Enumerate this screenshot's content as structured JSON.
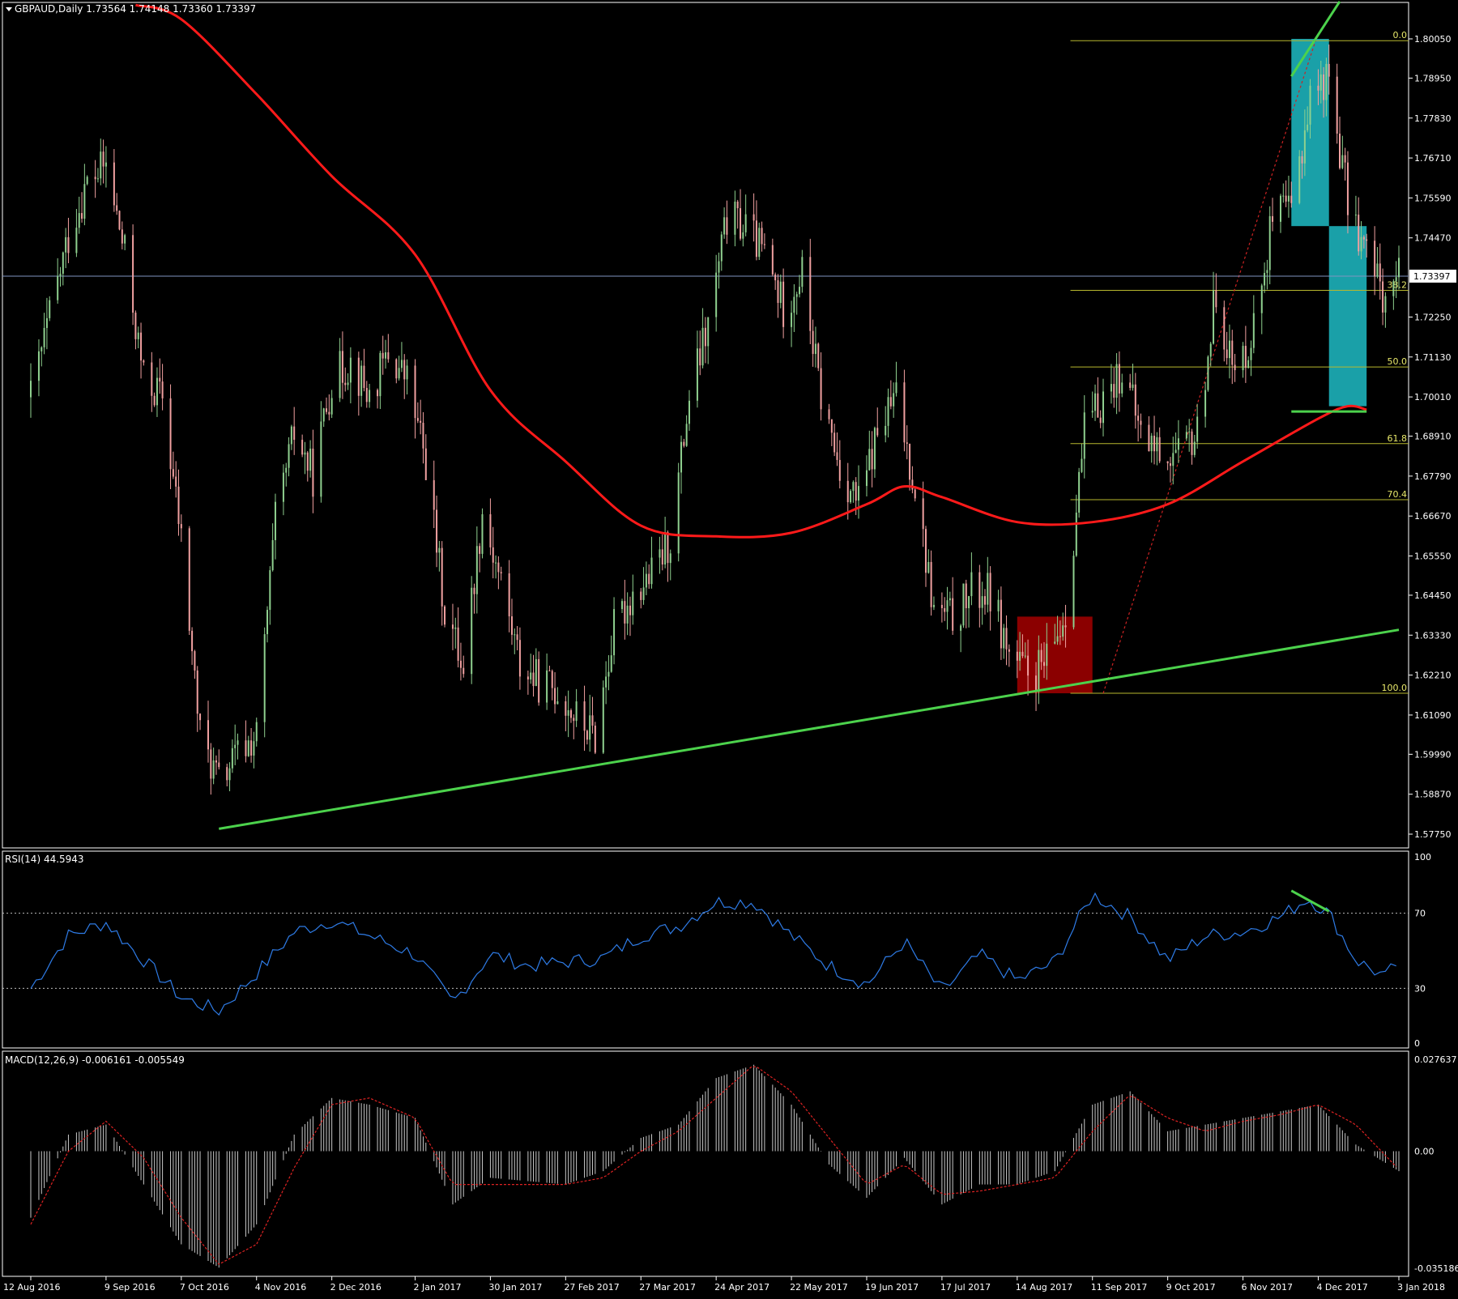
{
  "colors": {
    "background": "#000000",
    "frame": "#ffffff",
    "text": "#ffffff",
    "bull_candle": "#8fd08f",
    "bear_candle": "#f0a0a0",
    "ma_line": "#ff1a1a",
    "trendline": "#4cd24c",
    "fib": "#b8b82e",
    "fib_diag": "#cc2222",
    "price_line": "#7f93c0",
    "rsi_line": "#2e7be6",
    "macd_hist": "#c8c8c8",
    "macd_signal": "#dd2222",
    "cyan_box": "#1aa0a8",
    "red_box": "#8b0000"
  },
  "main": {
    "header": "GBPAUD,Daily  1.73564 1.74148 1.73360 1.73397",
    "current_price_label": "1.73397"
  },
  "rsi": {
    "header": "RSI(14) 44.5943",
    "levels_labels": [
      "100",
      "70",
      "30",
      "0"
    ]
  },
  "macd": {
    "header": "MACD(12,26,9) -0.006161 -0.005549",
    "axis_labels": [
      "0.027637",
      "0.00",
      "-0.035186"
    ]
  },
  "date_labels": [
    "12 Aug 2016",
    "9 Sep 2016",
    "7 Oct 2016",
    "4 Nov 2016",
    "2 Dec 2016",
    "2 Jan 2017",
    "30 Jan 2017",
    "27 Feb 2017",
    "27 Mar 2017",
    "24 Apr 2017",
    "22 May 2017",
    "19 Jun 2017",
    "17 Jul 2017",
    "14 Aug 2017",
    "11 Sep 2017",
    "9 Oct 2017",
    "6 Nov 2017",
    "4 Dec 2017",
    "3 Jan 2018"
  ],
  "fib_labels": [
    "0.0",
    "38.2",
    "50.0",
    "61.8",
    "70.4",
    "100.0"
  ],
  "chart_data": [
    {
      "type": "candlestick",
      "title": "GBPAUD,Daily",
      "symbol": "GBPAUD",
      "timeframe": "Daily",
      "ohlc_last": [
        1.73564,
        1.74148,
        1.7336,
        1.73397
      ],
      "y_ticks": [
        1.8005,
        1.7895,
        1.7783,
        1.7671,
        1.7559,
        1.7447,
        1.73397,
        1.7225,
        1.7113,
        1.7001,
        1.6891,
        1.6779,
        1.6667,
        1.6555,
        1.6445,
        1.6333,
        1.6221,
        1.6109,
        1.5999,
        1.5887,
        1.5775
      ],
      "ylim": [
        1.573,
        1.808
      ],
      "x_labels": [
        "12 Aug 2016",
        "9 Sep 2016",
        "7 Oct 2016",
        "4 Nov 2016",
        "2 Dec 2016",
        "2 Jan 2017",
        "30 Jan 2017",
        "27 Feb 2017",
        "27 Mar 2017",
        "24 Apr 2017",
        "22 May 2017",
        "19 Jun 2017",
        "17 Jul 2017",
        "14 Aug 2017",
        "11 Sep 2017",
        "9 Oct 2017",
        "6 Nov 2017",
        "4 Dec 2017",
        "3 Jan 2018"
      ],
      "close_path": [
        [
          "12 Aug 2016",
          1.7
        ],
        [
          "26 Aug 2016",
          1.745
        ],
        [
          "2 Sep 2016",
          1.76
        ],
        [
          "9 Sep 2016",
          1.765
        ],
        [
          "16 Sep 2016",
          1.74
        ],
        [
          "23 Sep 2016",
          1.705
        ],
        [
          "30 Sep 2016",
          1.7
        ],
        [
          "7 Oct 2016",
          1.66
        ],
        [
          "14 Oct 2016",
          1.605
        ],
        [
          "21 Oct 2016",
          1.592
        ],
        [
          "28 Oct 2016",
          1.6
        ],
        [
          "4 Nov 2016",
          1.605
        ],
        [
          "11 Nov 2016",
          1.665
        ],
        [
          "18 Nov 2016",
          1.69
        ],
        [
          "25 Nov 2016",
          1.678
        ],
        [
          "2 Dec 2016",
          1.705
        ],
        [
          "9 Dec 2016",
          1.71
        ],
        [
          "16 Dec 2016",
          1.7
        ],
        [
          "23 Dec 2016",
          1.712
        ],
        [
          "30 Dec 2016",
          1.705
        ],
        [
          "6 Jan 2017",
          1.682
        ],
        [
          "13 Jan 2017",
          1.64
        ],
        [
          "20 Jan 2017",
          1.625
        ],
        [
          "27 Jan 2017",
          1.668
        ],
        [
          "3 Feb 2017",
          1.648
        ],
        [
          "10 Feb 2017",
          1.625
        ],
        [
          "17 Feb 2017",
          1.62
        ],
        [
          "24 Feb 2017",
          1.618
        ],
        [
          "3 Mar 2017",
          1.61
        ],
        [
          "10 Mar 2017",
          1.605
        ],
        [
          "17 Mar 2017",
          1.635
        ],
        [
          "24 Mar 2017",
          1.645
        ],
        [
          "31 Mar 2017",
          1.65
        ],
        [
          "7 Apr 2017",
          1.66
        ],
        [
          "14 Apr 2017",
          1.7
        ],
        [
          "21 Apr 2017",
          1.72
        ],
        [
          "28 Apr 2017",
          1.75
        ],
        [
          "5 May 2017",
          1.748
        ],
        [
          "12 May 2017",
          1.74
        ],
        [
          "19 May 2017",
          1.725
        ],
        [
          "26 May 2017",
          1.735
        ],
        [
          "2 Jun 2017",
          1.7
        ],
        [
          "9 Jun 2017",
          1.68
        ],
        [
          "16 Jun 2017",
          1.67
        ],
        [
          "23 Jun 2017",
          1.69
        ],
        [
          "30 Jun 2017",
          1.7
        ],
        [
          "7 Jul 2017",
          1.675
        ],
        [
          "14 Jul 2017",
          1.64
        ],
        [
          "21 Jul 2017",
          1.638
        ],
        [
          "28 Jul 2017",
          1.645
        ],
        [
          "4 Aug 2017",
          1.645
        ],
        [
          "11 Aug 2017",
          1.628
        ],
        [
          "18 Aug 2017",
          1.622
        ],
        [
          "25 Aug 2017",
          1.625
        ],
        [
          "1 Sep 2017",
          1.64
        ],
        [
          "8 Sep 2017",
          1.69
        ],
        [
          "15 Sep 2017",
          1.7
        ],
        [
          "22 Sep 2017",
          1.708
        ],
        [
          "29 Sep 2017",
          1.69
        ],
        [
          "6 Oct 2017",
          1.685
        ],
        [
          "13 Oct 2017",
          1.683
        ],
        [
          "20 Oct 2017",
          1.69
        ],
        [
          "27 Oct 2017",
          1.73
        ],
        [
          "3 Nov 2017",
          1.705
        ],
        [
          "10 Nov 2017",
          1.72
        ],
        [
          "17 Nov 2017",
          1.75
        ],
        [
          "24 Nov 2017",
          1.752
        ],
        [
          "1 Dec 2017",
          1.785
        ],
        [
          "8 Dec 2017",
          1.79
        ],
        [
          "15 Dec 2017",
          1.755
        ],
        [
          "22 Dec 2017",
          1.74
        ],
        [
          "29 Dec 2017",
          1.728
        ],
        [
          "3 Jan 2018",
          1.734
        ]
      ],
      "moving_average": [
        [
          "20 Sep 2016",
          1.81
        ],
        [
          "7 Oct 2016",
          1.806
        ],
        [
          "4 Nov 2016",
          1.785
        ],
        [
          "2 Dec 2016",
          1.762
        ],
        [
          "2 Jan 2017",
          1.74
        ],
        [
          "30 Jan 2017",
          1.702
        ],
        [
          "27 Feb 2017",
          1.682
        ],
        [
          "27 Mar 2017",
          1.664
        ],
        [
          "24 Apr 2017",
          1.661
        ],
        [
          "22 May 2017",
          1.662
        ],
        [
          "19 Jun 2017",
          1.67
        ],
        [
          "3 Jul 2017",
          1.675
        ],
        [
          "17 Jul 2017",
          1.672
        ],
        [
          "14 Aug 2017",
          1.665
        ],
        [
          "11 Sep 2017",
          1.665
        ],
        [
          "9 Oct 2017",
          1.67
        ],
        [
          "6 Nov 2017",
          1.682
        ],
        [
          "4 Dec 2017",
          1.694
        ],
        [
          "15 Dec 2017",
          1.6975
        ],
        [
          "22 Dec 2017",
          1.6965
        ]
      ],
      "trendlines": [
        {
          "from": [
            "21 Oct 2016",
            1.579
          ],
          "to": [
            "3 Jan 2018",
            1.6348
          ]
        },
        {
          "from": [
            "24 Nov 2017",
            1.79
          ],
          "to": [
            "12 Dec 2017",
            1.811
          ]
        },
        {
          "from": [
            "24 Nov 2017",
            1.696
          ],
          "to": [
            "22 Dec 2017",
            1.696
          ]
        }
      ],
      "fibonacci": {
        "from": [
          "15 Sep 2017",
          1.617
        ],
        "to": [
          "3 Jan 2018",
          1.8
        ],
        "levels": [
          {
            "label": "0.0",
            "price": 1.8
          },
          {
            "label": "38.2",
            "price": 1.73
          },
          {
            "label": "50.0",
            "price": 1.7085
          },
          {
            "label": "61.8",
            "price": 1.687
          },
          {
            "label": "70.4",
            "price": 1.6713
          },
          {
            "label": "100.0",
            "price": 1.617
          }
        ]
      },
      "boxes": [
        {
          "color": "red",
          "from": [
            "14 Aug 2017",
            1.6385
          ],
          "to": [
            "11 Sep 2017",
            1.617
          ]
        },
        {
          "color": "cyan",
          "from": [
            "24 Nov 2017",
            1.8005
          ],
          "to": [
            "8 Dec 2017",
            1.748
          ]
        },
        {
          "color": "cyan",
          "from": [
            "8 Dec 2017",
            1.748
          ],
          "to": [
            "22 Dec 2017",
            1.6975
          ]
        }
      ]
    },
    {
      "type": "line",
      "title": "RSI(14) 44.5943",
      "ylim": [
        0,
        100
      ],
      "levels": [
        70,
        30
      ],
      "series": [
        {
          "name": "RSI(14)",
          "values": [
            [
              "12 Aug 2016",
              30
            ],
            [
              "26 Aug 2016",
              58
            ],
            [
              "9 Sep 2016",
              65
            ],
            [
              "23 Sep 2016",
              45
            ],
            [
              "7 Oct 2016",
              25
            ],
            [
              "21 Oct 2016",
              18
            ],
            [
              "4 Nov 2016",
              38
            ],
            [
              "18 Nov 2016",
              60
            ],
            [
              "2 Dec 2016",
              66
            ],
            [
              "16 Dec 2016",
              58
            ],
            [
              "2 Jan 2017",
              48
            ],
            [
              "16 Jan 2017",
              22
            ],
            [
              "30 Jan 2017",
              48
            ],
            [
              "13 Feb 2017",
              42
            ],
            [
              "27 Feb 2017",
              44
            ],
            [
              "13 Mar 2017",
              46
            ],
            [
              "27 Mar 2017",
              58
            ],
            [
              "10 Apr 2017",
              63
            ],
            [
              "24 Apr 2017",
              76
            ],
            [
              "8 May 2017",
              76
            ],
            [
              "22 May 2017",
              58
            ],
            [
              "5 Jun 2017",
              42
            ],
            [
              "19 Jun 2017",
              32
            ],
            [
              "3 Jul 2017",
              55
            ],
            [
              "17 Jul 2017",
              28
            ],
            [
              "31 Jul 2017",
              48
            ],
            [
              "14 Aug 2017",
              34
            ],
            [
              "28 Aug 2017",
              44
            ],
            [
              "11 Sep 2017",
              80
            ],
            [
              "25 Sep 2017",
              68
            ],
            [
              "9 Oct 2017",
              45
            ],
            [
              "23 Oct 2017",
              58
            ],
            [
              "6 Nov 2017",
              60
            ],
            [
              "20 Nov 2017",
              68
            ],
            [
              "30 Nov 2017",
              78
            ],
            [
              "8 Dec 2017",
              70
            ],
            [
              "18 Dec 2017",
              45
            ],
            [
              "29 Dec 2017",
              36
            ],
            [
              "3 Jan 2018",
              44.59
            ]
          ]
        }
      ]
    },
    {
      "type": "bar",
      "title": "MACD(12,26,9) -0.006161 -0.005549",
      "ylim": [
        -0.035186,
        0.027637
      ],
      "series": [
        {
          "name": "MACD histogram",
          "values": [
            [
              "12 Aug 2016",
              -0.02
            ],
            [
              "26 Aug 2016",
              0.005
            ],
            [
              "9 Sep 2016",
              0.008
            ],
            [
              "23 Sep 2016",
              -0.01
            ],
            [
              "7 Oct 2016",
              -0.028
            ],
            [
              "21 Oct 2016",
              -0.035
            ],
            [
              "4 Nov 2016",
              -0.022
            ],
            [
              "18 Nov 2016",
              0.005
            ],
            [
              "2 Dec 2016",
              0.016
            ],
            [
              "16 Dec 2016",
              0.014
            ],
            [
              "2 Jan 2017",
              0.01
            ],
            [
              "16 Jan 2017",
              -0.016
            ],
            [
              "30 Jan 2017",
              -0.008
            ],
            [
              "13 Feb 2017",
              -0.009
            ],
            [
              "27 Feb 2017",
              -0.01
            ],
            [
              "13 Mar 2017",
              -0.006
            ],
            [
              "27 Mar 2017",
              0.004
            ],
            [
              "10 Apr 2017",
              0.008
            ],
            [
              "24 Apr 2017",
              0.022
            ],
            [
              "8 May 2017",
              0.026
            ],
            [
              "22 May 2017",
              0.014
            ],
            [
              "5 Jun 2017",
              -0.004
            ],
            [
              "19 Jun 2017",
              -0.014
            ],
            [
              "3 Jul 2017",
              -0.002
            ],
            [
              "17 Jul 2017",
              -0.016
            ],
            [
              "31 Jul 2017",
              -0.01
            ],
            [
              "14 Aug 2017",
              -0.01
            ],
            [
              "28 Aug 2017",
              -0.006
            ],
            [
              "11 Sep 2017",
              0.014
            ],
            [
              "25 Sep 2017",
              0.018
            ],
            [
              "9 Oct 2017",
              0.006
            ],
            [
              "23 Oct 2017",
              0.008
            ],
            [
              "6 Nov 2017",
              0.01
            ],
            [
              "20 Nov 2017",
              0.012
            ],
            [
              "4 Dec 2017",
              0.014
            ],
            [
              "18 Dec 2017",
              0.002
            ],
            [
              "3 Jan 2018",
              -0.006
            ]
          ]
        },
        {
          "name": "Signal",
          "values": [
            [
              "12 Aug 2016",
              -0.022
            ],
            [
              "26 Aug 2016",
              0.0
            ],
            [
              "9 Sep 2016",
              0.009
            ],
            [
              "23 Sep 2016",
              -0.002
            ],
            [
              "7 Oct 2016",
              -0.02
            ],
            [
              "21 Oct 2016",
              -0.034
            ],
            [
              "4 Nov 2016",
              -0.028
            ],
            [
              "18 Nov 2016",
              -0.005
            ],
            [
              "2 Dec 2016",
              0.014
            ],
            [
              "16 Dec 2016",
              0.016
            ],
            [
              "2 Jan 2017",
              0.01
            ],
            [
              "16 Jan 2017",
              -0.01
            ],
            [
              "30 Jan 2017",
              -0.01
            ],
            [
              "13 Feb 2017",
              -0.01
            ],
            [
              "27 Feb 2017",
              -0.01
            ],
            [
              "13 Mar 2017",
              -0.008
            ],
            [
              "27 Mar 2017",
              0.0
            ],
            [
              "10 Apr 2017",
              0.006
            ],
            [
              "24 Apr 2017",
              0.016
            ],
            [
              "8 May 2017",
              0.026
            ],
            [
              "22 May 2017",
              0.018
            ],
            [
              "5 Jun 2017",
              0.004
            ],
            [
              "19 Jun 2017",
              -0.01
            ],
            [
              "3 Jul 2017",
              -0.004
            ],
            [
              "17 Jul 2017",
              -0.013
            ],
            [
              "31 Jul 2017",
              -0.012
            ],
            [
              "14 Aug 2017",
              -0.01
            ],
            [
              "28 Aug 2017",
              -0.008
            ],
            [
              "11 Sep 2017",
              0.006
            ],
            [
              "25 Sep 2017",
              0.017
            ],
            [
              "9 Oct 2017",
              0.01
            ],
            [
              "23 Oct 2017",
              0.006
            ],
            [
              "6 Nov 2017",
              0.009
            ],
            [
              "20 Nov 2017",
              0.011
            ],
            [
              "4 Dec 2017",
              0.014
            ],
            [
              "18 Dec 2017",
              0.008
            ],
            [
              "3 Jan 2018",
              -0.0055
            ]
          ]
        }
      ]
    }
  ]
}
